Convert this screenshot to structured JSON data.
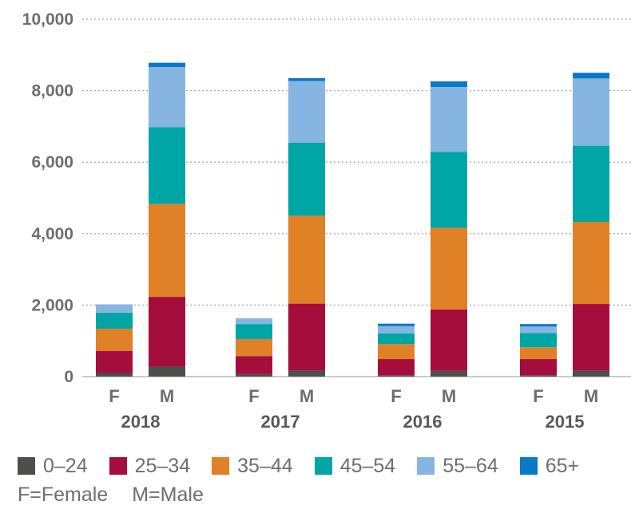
{
  "chart_data": {
    "type": "bar",
    "stacked": true,
    "ylim": [
      0,
      10000
    ],
    "y_ticks": [
      "0",
      "2,000",
      "4,000",
      "6,000",
      "8,000",
      "10,000"
    ],
    "y_tick_values": [
      0,
      2000,
      4000,
      6000,
      8000,
      10000
    ],
    "grid": "horizontal dotted",
    "groups": [
      {
        "year": "2018",
        "bars": [
          {
            "sex": "F",
            "values": [
              100,
              620,
              620,
              450,
              230,
              0
            ]
          },
          {
            "sex": "M",
            "values": [
              280,
              1950,
              2600,
              2150,
              1680,
              120
            ]
          }
        ]
      },
      {
        "year": "2017",
        "bars": [
          {
            "sex": "F",
            "values": [
              70,
              500,
              480,
              420,
              160,
              0
            ]
          },
          {
            "sex": "M",
            "values": [
              170,
              1870,
              2460,
              2040,
              1730,
              80
            ]
          }
        ]
      },
      {
        "year": "2016",
        "bars": [
          {
            "sex": "F",
            "values": [
              40,
              450,
              420,
              300,
              200,
              70
            ]
          },
          {
            "sex": "M",
            "values": [
              160,
              1720,
              2280,
              2130,
              1810,
              160
            ]
          }
        ]
      },
      {
        "year": "2015",
        "bars": [
          {
            "sex": "F",
            "values": [
              40,
              450,
              330,
              400,
              180,
              70
            ]
          },
          {
            "sex": "M",
            "values": [
              170,
              1860,
              2300,
              2130,
              1880,
              160
            ]
          }
        ]
      }
    ],
    "series": [
      {
        "name": "0–24",
        "color": "#4d4f4c"
      },
      {
        "name": "25–34",
        "color": "#a50d3d"
      },
      {
        "name": "35–44",
        "color": "#e08027"
      },
      {
        "name": "45–54",
        "color": "#00a5a6"
      },
      {
        "name": "55–64",
        "color": "#86b5e2"
      },
      {
        "name": "65+",
        "color": "#0b78c8"
      }
    ]
  },
  "legend_note": {
    "female": "F=Female",
    "male": "M=Male"
  }
}
